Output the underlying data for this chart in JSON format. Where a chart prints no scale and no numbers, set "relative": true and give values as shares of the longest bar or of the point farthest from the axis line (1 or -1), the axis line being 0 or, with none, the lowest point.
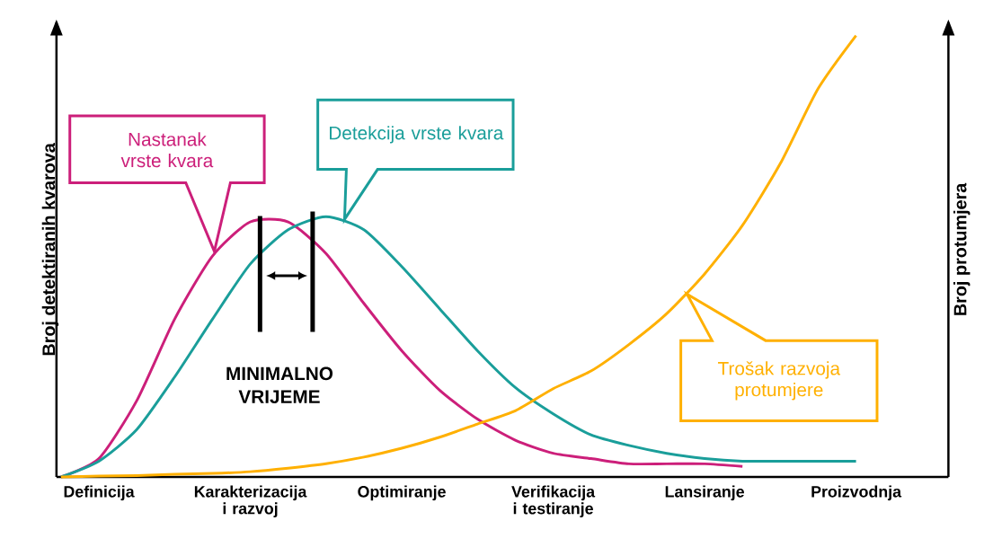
{
  "chart_data": {
    "type": "line",
    "relative": true,
    "categories": [
      null,
      "Definicija",
      null,
      null,
      null,
      "Karakterizacija i razvoj",
      null,
      null,
      null,
      "Optimiranje",
      null,
      null,
      null,
      "Verifikacija i testiranje",
      null,
      null,
      null,
      "Lansiranje",
      null,
      null,
      null,
      "Proizvodnja"
    ],
    "ylabel": "Broj detektiranih kvarova",
    "y2label": "Broj protumjera",
    "series": [
      {
        "name": "Nastanak vrste kvara",
        "color": "#cc1f7a",
        "values": [
          0,
          0.07,
          0.29,
          0.6,
          0.84,
          0.97,
          0.97,
          0.85,
          0.66,
          0.48,
          0.33,
          0.22,
          0.14,
          0.09,
          0.07,
          0.05,
          0.05,
          0.05,
          0.04,
          null,
          null,
          null
        ]
      },
      {
        "name": "Detekcija vrste kvara",
        "color": "#1a9e9a",
        "values": [
          0,
          0.06,
          0.18,
          0.38,
          0.6,
          0.81,
          0.94,
          0.99,
          0.94,
          0.8,
          0.64,
          0.48,
          0.34,
          0.24,
          0.16,
          0.12,
          0.09,
          0.07,
          0.06,
          0.06,
          0.06,
          0.06
        ]
      },
      {
        "name": "Trošak razvoja protumjere",
        "color": "#ffb000",
        "axis": "y2",
        "values": [
          0,
          0.002,
          0.003,
          0.006,
          0.008,
          0.012,
          0.02,
          0.03,
          0.045,
          0.065,
          0.09,
          0.12,
          0.15,
          0.2,
          0.24,
          0.3,
          0.37,
          0.46,
          0.57,
          0.71,
          0.88,
          1.0
        ]
      }
    ],
    "annotations": [
      "MINIMALNO VRIJEME"
    ]
  }
}
